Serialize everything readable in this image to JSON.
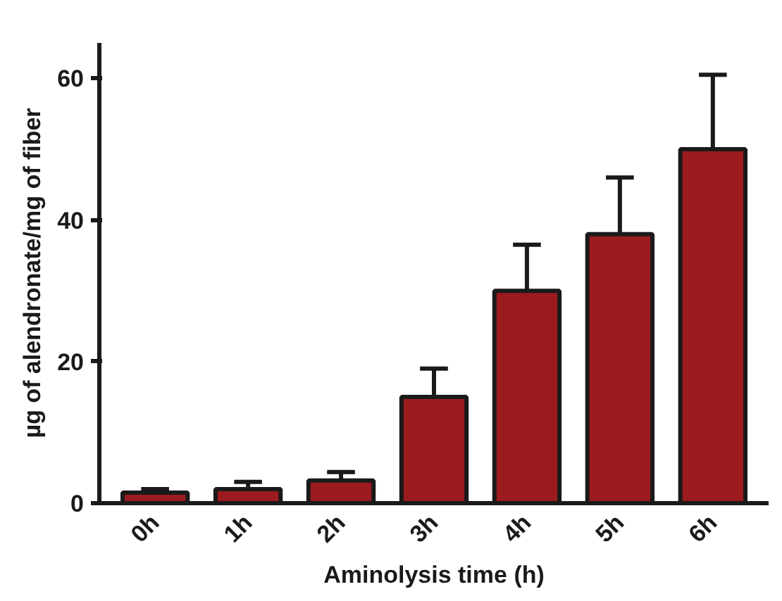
{
  "chart_data": {
    "type": "bar",
    "xlabel": "Aminolysis time (h)",
    "ylabel": "µg of alendronate/mg of fiber",
    "categories": [
      "0h",
      "1h",
      "2h",
      "3h",
      "4h",
      "5h",
      "6h"
    ],
    "values": [
      1.5,
      2,
      3.2,
      15,
      30,
      38,
      50
    ],
    "errors": [
      [
        1.5,
        2
      ],
      [
        2,
        3
      ],
      [
        3.2,
        4.4
      ],
      [
        15,
        19
      ],
      [
        30,
        36.5
      ],
      [
        38,
        46
      ],
      [
        50,
        60.5
      ]
    ],
    "color": "#9b1b1f",
    "ylim": [
      0,
      65
    ],
    "yticks": [
      0,
      20,
      40,
      60
    ],
    "grid": false
  }
}
